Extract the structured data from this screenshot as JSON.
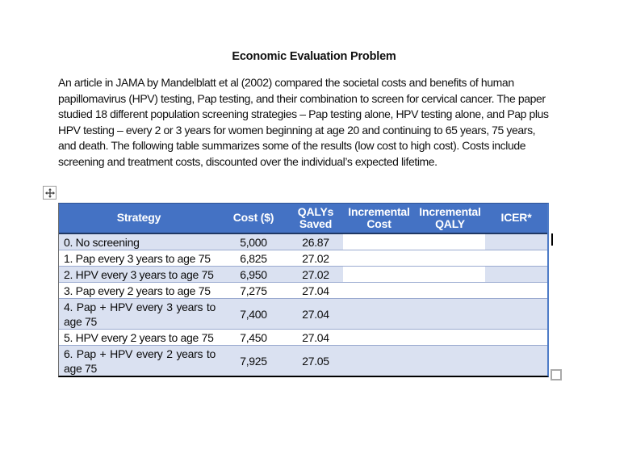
{
  "colors": {
    "header_bg": "#4472C4",
    "header_text": "#FFFFFF",
    "band_bg": "#DAE1F1",
    "row_bg": "#FFFFFF",
    "inner_border": "#9BABD0",
    "outer_border_bottom": "#000000",
    "outer_border_right": "#4E7CC7"
  },
  "icons": {
    "table_move": "four-way-arrow",
    "table_resize": "square-handle",
    "caret": "text-caret"
  },
  "title": "Economic Evaluation Problem",
  "intro_lines": [
    "An article in JAMA by Mandelblatt et al (2002) compared the societal costs and benefits of human",
    "papillomavirus (HPV) testing, Pap testing, and their combination to screen for cervical cancer. The paper",
    "studied 18 different population screening strategies – Pap testing alone, HPV testing alone, and Pap plus",
    "HPV testing – every 2 or 3 years for women beginning at age 20 and continuing to 65 years, 75 years,",
    "and death.  The following table summarizes some of the results (low cost to high cost).  Costs include",
    "screening and treatment costs, discounted over the individual’s expected lifetime."
  ],
  "table": {
    "columns": [
      {
        "key": "strategy",
        "label": "Strategy",
        "align": "left"
      },
      {
        "key": "cost",
        "label": "Cost ($)",
        "align": "center"
      },
      {
        "key": "qalys",
        "label": "QALYs Saved",
        "align": "center"
      },
      {
        "key": "inc_cost",
        "label": "Incremental Cost",
        "align": "center"
      },
      {
        "key": "inc_qaly",
        "label": "Incremental QALY",
        "align": "center"
      },
      {
        "key": "icer",
        "label": "ICER*",
        "align": "center"
      }
    ],
    "rows": [
      {
        "strategy": "0. No screening",
        "cost": "5,000",
        "qalys": "26.87",
        "inc_cost": "",
        "inc_qaly": "",
        "icer": "",
        "banded": true,
        "clear_inc": true,
        "tall": false
      },
      {
        "strategy": "1. Pap every 3 years to age 75",
        "cost": "6,825",
        "qalys": "27.02",
        "inc_cost": "",
        "inc_qaly": "",
        "icer": "",
        "banded": false,
        "clear_inc": false,
        "tall": false
      },
      {
        "strategy": "2. HPV every 3 years to age 75",
        "cost": "6,950",
        "qalys": "27.02",
        "inc_cost": "",
        "inc_qaly": "",
        "icer": "",
        "banded": true,
        "clear_inc": true,
        "tall": false
      },
      {
        "strategy": "3. Pap every 2 years to age 75",
        "cost": "7,275",
        "qalys": "27.04",
        "inc_cost": "",
        "inc_qaly": "",
        "icer": "",
        "banded": false,
        "clear_inc": false,
        "tall": false
      },
      {
        "strategy": "4. Pap + HPV every 3 years to age 75",
        "cost": "7,400",
        "qalys": "27.04",
        "inc_cost": "",
        "inc_qaly": "",
        "icer": "",
        "banded": true,
        "clear_inc": false,
        "tall": true
      },
      {
        "strategy": "5. HPV every 2 years to age 75",
        "cost": "7,450",
        "qalys": "27.04",
        "inc_cost": "",
        "inc_qaly": "",
        "icer": "",
        "banded": false,
        "clear_inc": false,
        "tall": false
      },
      {
        "strategy": "6. Pap + HPV every 2 years to age 75",
        "cost": "7,925",
        "qalys": "27.05",
        "inc_cost": "",
        "inc_qaly": "",
        "icer": "",
        "banded": true,
        "clear_inc": false,
        "tall": true
      }
    ]
  }
}
